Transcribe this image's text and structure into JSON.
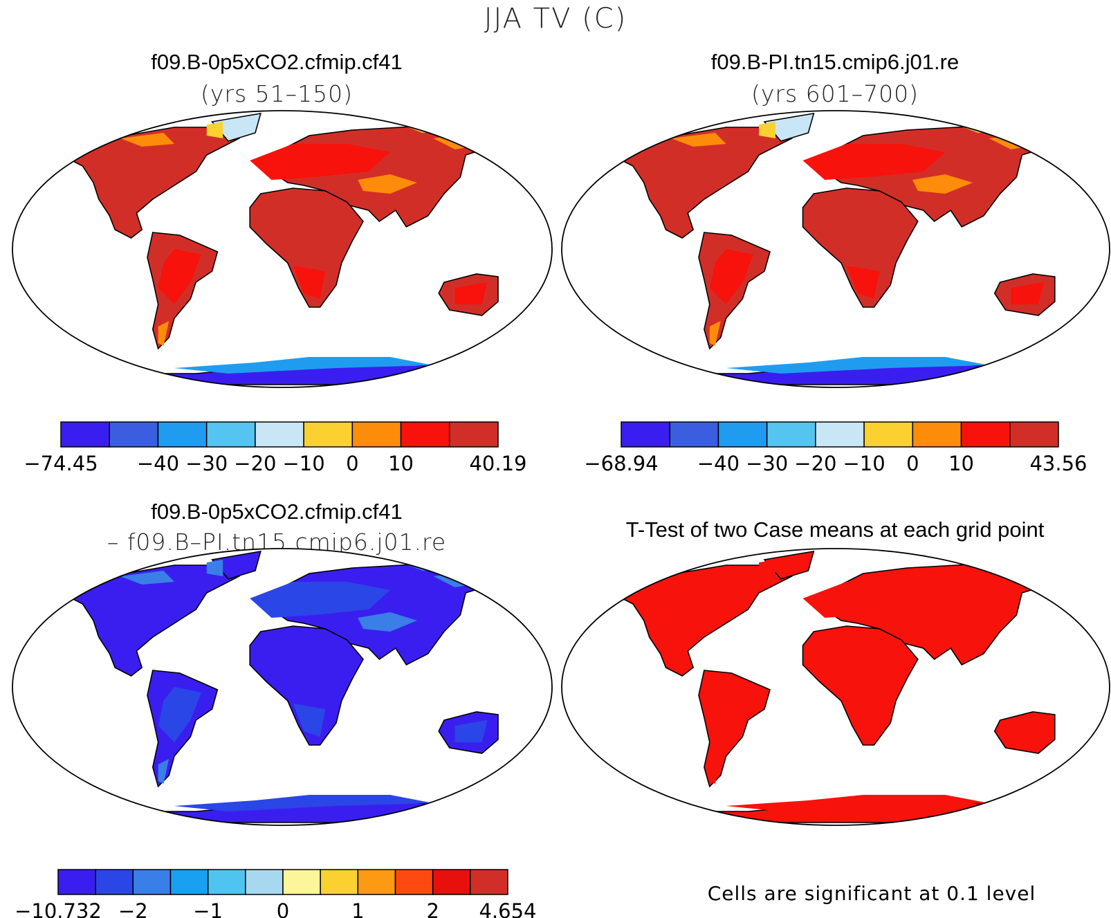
{
  "figure": {
    "title": "JJA TV (C)",
    "footnote": "Cells are significant at 0.1 level"
  },
  "chart_data": [
    {
      "type": "heatmap",
      "title": "f09.B-0p5xCO2.cfmip.cf41",
      "subtitle": "(yrs 51–150)",
      "colorbar": {
        "colors": [
          "#3a1ef0",
          "#3b5ee0",
          "#1f9cf0",
          "#55c4f0",
          "#c8e6f5",
          "#fbd132",
          "#fd8c0a",
          "#f7120c",
          "#d22e28"
        ],
        "labels": [
          "−74.45",
          "−40",
          "−30",
          "−20",
          "−10",
          "0",
          "10",
          "40.19"
        ],
        "boundaries": [
          -74.45,
          -50,
          -40,
          -30,
          -20,
          -10,
          0,
          10,
          20,
          40.19
        ]
      },
      "land_colors": {
        "main": "#d22e28",
        "warm": "#f7120c",
        "cool": "#fd8c0a",
        "cold": "#fbd132",
        "ice": "#c8e6f5",
        "antarctica": "#3a1ef0",
        "antarctica_edge": "#1f9cf0"
      }
    },
    {
      "type": "heatmap",
      "title": "f09.B-PI.tn15.cmip6.j01.re",
      "subtitle": "(yrs 601–700)",
      "colorbar": {
        "colors": [
          "#3a1ef0",
          "#3b5ee0",
          "#1f9cf0",
          "#55c4f0",
          "#c8e6f5",
          "#fbd132",
          "#fd8c0a",
          "#f7120c",
          "#d22e28"
        ],
        "labels": [
          "−68.94",
          "−40",
          "−30",
          "−20",
          "−10",
          "0",
          "10",
          "43.56"
        ],
        "boundaries": [
          -68.94,
          -50,
          -40,
          -30,
          -20,
          -10,
          0,
          10,
          20,
          43.56
        ]
      },
      "land_colors": {
        "main": "#d22e28",
        "warm": "#f7120c",
        "cool": "#fd8c0a",
        "cold": "#fbd132",
        "ice": "#c8e6f5",
        "antarctica": "#3a1ef0",
        "antarctica_edge": "#1f9cf0"
      }
    },
    {
      "type": "heatmap",
      "title": "f09.B-0p5xCO2.cfmip.cf41",
      "subtitle": "– f09.B–PI.tn15.cmip6.j01.re",
      "colorbar": {
        "colors": [
          "#3a1ef0",
          "#2b46e6",
          "#3a7ee8",
          "#1aa0f0",
          "#50c4f0",
          "#a8d8f0",
          "#fdf59a",
          "#fbd132",
          "#fd9a14",
          "#fc4a10",
          "#e8100c",
          "#d22e28"
        ],
        "labels": [
          "−10.732",
          "−2",
          "−1",
          "0",
          "1",
          "2",
          "4.654"
        ],
        "boundaries": [
          -10.732,
          -3,
          -2,
          -1.5,
          -1,
          -0.5,
          0,
          0.5,
          1,
          1.5,
          2,
          3,
          4.654
        ]
      },
      "land_colors": {
        "main": "#3a1ef0",
        "warm": "#2b46e6",
        "cool": "#3a7ee8",
        "cold": "#3a7ee8",
        "ice": "#3a1ef0",
        "antarctica": "#3a1ef0",
        "antarctica_edge": "#2b46e6"
      }
    },
    {
      "type": "heatmap",
      "title": "T-Test of two Case means at each grid point",
      "subtitle": "",
      "land_colors": {
        "main": "#f7120c",
        "warm": "#f7120c",
        "cool": "#f7120c",
        "cold": "#f7120c",
        "ice": "#f7120c",
        "antarctica": "#f7120c",
        "antarctica_edge": "#f7120c"
      }
    }
  ]
}
